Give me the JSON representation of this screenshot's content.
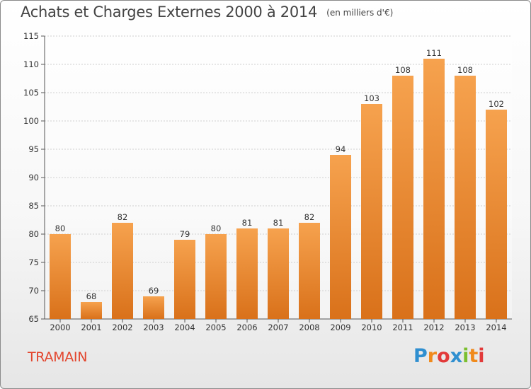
{
  "title": "Achats et Charges Externes 2000 à 2014",
  "subtitle": "(en milliers d'€)",
  "place": "TRAMAIN",
  "brand": {
    "letters": [
      "P",
      "r",
      "o",
      "x",
      "i",
      "t",
      "i"
    ],
    "colors": [
      "#2f8fd0",
      "#f08a1c",
      "#e23a3a",
      "#2f8fd0",
      "#7bbf2f",
      "#f08a1c",
      "#e23a3a"
    ]
  },
  "colors": {
    "bar_top": "#f6a24e",
    "bar_bottom": "#d9711a",
    "title": "#444444",
    "place": "#e3452d"
  },
  "chart_data": {
    "type": "bar",
    "categories": [
      "2000",
      "2001",
      "2002",
      "2003",
      "2004",
      "2005",
      "2006",
      "2007",
      "2008",
      "2009",
      "2010",
      "2011",
      "2012",
      "2013",
      "2014"
    ],
    "values": [
      80,
      68,
      82,
      69,
      79,
      80,
      81,
      81,
      82,
      94,
      103,
      108,
      111,
      108,
      102
    ],
    "ylim": [
      65,
      115
    ],
    "yticks": [
      65,
      70,
      75,
      80,
      85,
      90,
      95,
      100,
      105,
      110,
      115
    ],
    "grid": true,
    "xlabel": "",
    "ylabel": ""
  }
}
